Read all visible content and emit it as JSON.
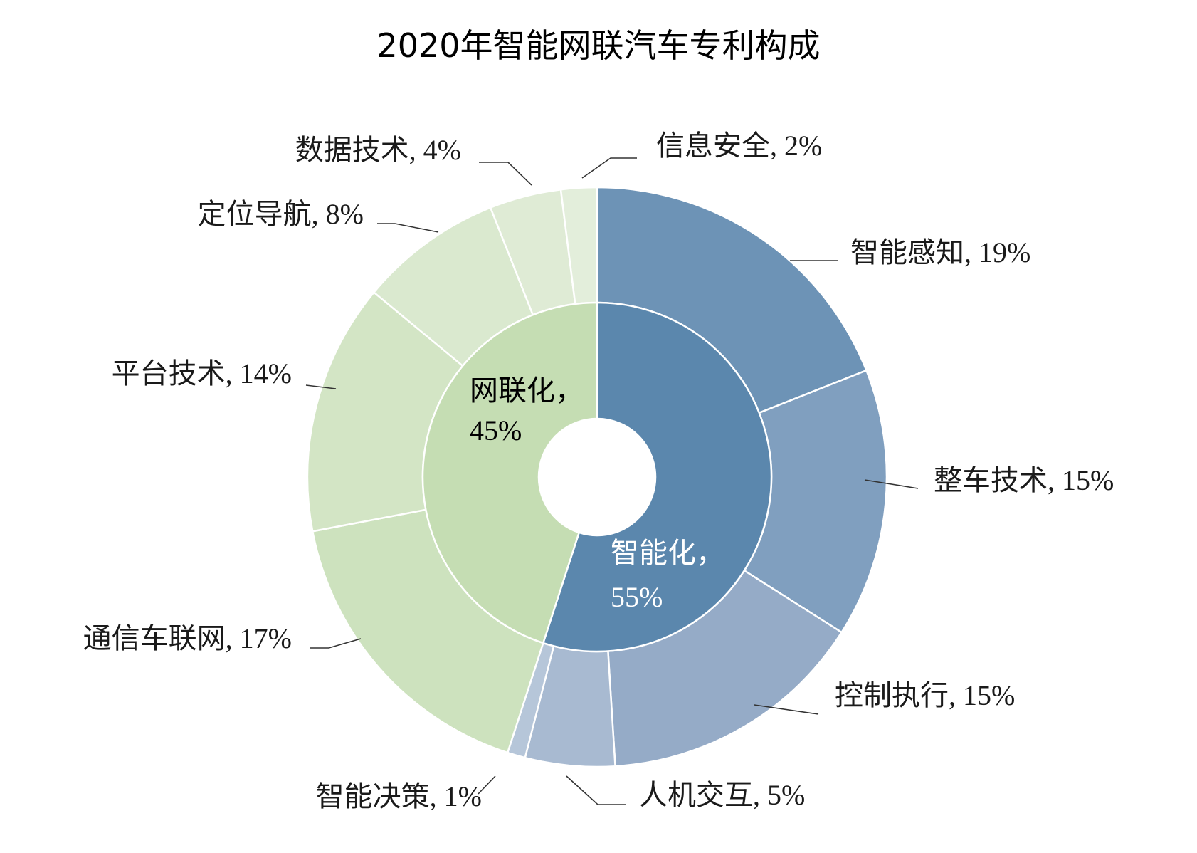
{
  "chart_data": {
    "type": "pie",
    "subtype": "sunburst-donut",
    "title": "2020年智能网联汽车专利构成",
    "inner_ring": [
      {
        "name": "智能化",
        "value": 55,
        "label": "智能化，",
        "percent_label": "55%",
        "color": "#5b87ad",
        "text_color": "#ffffff"
      },
      {
        "name": "网联化",
        "value": 45,
        "label": "网联化，",
        "percent_label": "45%",
        "color": "#c5ddb3",
        "text_color": "#000000"
      }
    ],
    "outer_ring": [
      {
        "name": "智能感知",
        "value": 19,
        "label": "智能感知, 19%",
        "color": "#6d93b6",
        "parent": "智能化"
      },
      {
        "name": "整车技术",
        "value": 15,
        "label": "整车技术, 15%",
        "color": "#809fbf",
        "parent": "智能化"
      },
      {
        "name": "控制执行",
        "value": 15,
        "label": "控制执行, 15%",
        "color": "#95abc7",
        "parent": "智能化"
      },
      {
        "name": "人机交互",
        "value": 5,
        "label": "人机交互, 5%",
        "color": "#a8bad1",
        "parent": "智能化"
      },
      {
        "name": "智能决策",
        "value": 1,
        "label": "智能决策, 1%",
        "color": "#b6c6d9",
        "parent": "智能化"
      },
      {
        "name": "通信车联网",
        "value": 17,
        "label": "通信车联网, 17%",
        "color": "#cde2be",
        "parent": "网联化"
      },
      {
        "name": "平台技术",
        "value": 14,
        "label": "平台技术, 14%",
        "color": "#d3e5c5",
        "parent": "网联化"
      },
      {
        "name": "定位导航",
        "value": 8,
        "label": "定位导航, 8%",
        "color": "#dae9cf",
        "parent": "网联化"
      },
      {
        "name": "数据技术",
        "value": 4,
        "label": "数据技术, 4%",
        "color": "#dfebd5",
        "parent": "网联化"
      },
      {
        "name": "信息安全",
        "value": 2,
        "label": "信息安全, 2%",
        "color": "#e3eedb",
        "parent": "网联化"
      }
    ],
    "legend": "none"
  }
}
